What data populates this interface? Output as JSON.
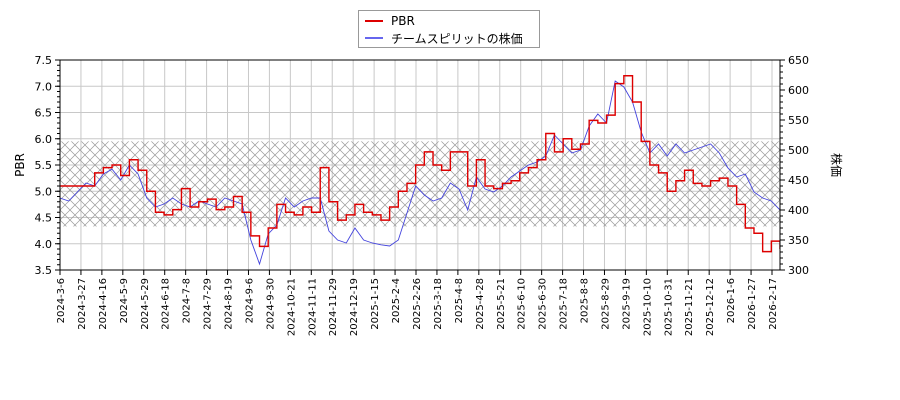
{
  "legend": {
    "items": [
      {
        "label": "PBR",
        "color": "#dd0000"
      },
      {
        "label": "チームスピリットの株価",
        "color": "#4444dd"
      }
    ]
  },
  "axes": {
    "left_title": "PBR",
    "right_title": "株価"
  },
  "chart_data": {
    "type": "line",
    "title": "",
    "xlabel": "",
    "ylabel": "PBR",
    "ylabel_right": "株価",
    "ylim": [
      3.5,
      7.5
    ],
    "ylim_right": [
      300,
      650
    ],
    "yticks": [
      "3.5",
      "4.0",
      "4.5",
      "5.0",
      "5.5",
      "6.0",
      "6.5",
      "7.0",
      "7.5"
    ],
    "yticks_right": [
      "300",
      "350",
      "400",
      "450",
      "500",
      "550",
      "600",
      "650"
    ],
    "grid": true,
    "legend_position": "top-center",
    "shaded_band": {
      "y_from": 4.33,
      "y_to": 5.95,
      "style": "cross-hatch",
      "axis": "left"
    },
    "x_tick_labels": [
      "2024-3-6",
      "2024-3-27",
      "2024-4-16",
      "2024-5-9",
      "2024-5-29",
      "2024-6-18",
      "2024-7-8",
      "2024-7-29",
      "2024-8-19",
      "2024-9-6",
      "2024-9-30",
      "2024-10-21",
      "2024-11-11",
      "2024-11-29",
      "2024-12-19",
      "2025-1-15",
      "2025-2-4",
      "2025-2-26",
      "2025-3-18",
      "2025-4-8",
      "2025-4-28",
      "2025-5-21",
      "2025-6-10",
      "2025-6-30",
      "2025-7-18",
      "2025-8-8",
      "2025-8-29",
      "2025-9-19",
      "2025-10-10",
      "2025-10-31",
      "2025-11-21",
      "2025-12-12",
      "2026-1-6",
      "2026-1-27",
      "2026-2-17"
    ],
    "series": [
      {
        "name": "PBR",
        "axis": "left",
        "color": "#dd0000",
        "step": true,
        "points": [
          [
            0,
            5.1
          ],
          [
            2,
            5.1
          ],
          [
            4,
            5.35
          ],
          [
            5,
            5.45
          ],
          [
            6,
            5.5
          ],
          [
            7,
            5.3
          ],
          [
            8,
            5.6
          ],
          [
            9,
            5.4
          ],
          [
            10,
            5.0
          ],
          [
            11,
            4.6
          ],
          [
            12,
            4.55
          ],
          [
            13,
            4.65
          ],
          [
            14,
            5.05
          ],
          [
            15,
            4.7
          ],
          [
            16,
            4.8
          ],
          [
            17,
            4.85
          ],
          [
            18,
            4.65
          ],
          [
            19,
            4.7
          ],
          [
            20,
            4.9
          ],
          [
            21,
            4.6
          ],
          [
            22,
            4.15
          ],
          [
            23,
            3.95
          ],
          [
            24,
            4.3
          ],
          [
            25,
            4.75
          ],
          [
            26,
            4.6
          ],
          [
            27,
            4.55
          ],
          [
            28,
            4.7
          ],
          [
            29,
            4.6
          ],
          [
            30,
            5.45
          ],
          [
            31,
            4.8
          ],
          [
            32,
            4.45
          ],
          [
            33,
            4.55
          ],
          [
            34,
            4.75
          ],
          [
            35,
            4.6
          ],
          [
            36,
            4.55
          ],
          [
            37,
            4.45
          ],
          [
            38,
            4.7
          ],
          [
            39,
            5.0
          ],
          [
            40,
            5.15
          ],
          [
            41,
            5.5
          ],
          [
            42,
            5.75
          ],
          [
            43,
            5.5
          ],
          [
            44,
            5.4
          ],
          [
            45,
            5.75
          ],
          [
            46,
            5.75
          ],
          [
            47,
            5.1
          ],
          [
            48,
            5.6
          ],
          [
            49,
            5.1
          ],
          [
            50,
            5.05
          ],
          [
            51,
            5.15
          ],
          [
            52,
            5.2
          ],
          [
            53,
            5.35
          ],
          [
            54,
            5.45
          ],
          [
            55,
            5.6
          ],
          [
            56,
            6.1
          ],
          [
            57,
            5.75
          ],
          [
            58,
            6.0
          ],
          [
            59,
            5.8
          ],
          [
            60,
            5.9
          ],
          [
            61,
            6.35
          ],
          [
            62,
            6.3
          ],
          [
            63,
            6.45
          ],
          [
            64,
            7.05
          ],
          [
            65,
            7.2
          ],
          [
            66,
            6.7
          ],
          [
            67,
            5.95
          ],
          [
            68,
            5.5
          ],
          [
            69,
            5.35
          ],
          [
            70,
            5.0
          ],
          [
            71,
            5.2
          ],
          [
            72,
            5.4
          ],
          [
            73,
            5.15
          ],
          [
            74,
            5.1
          ],
          [
            75,
            5.2
          ],
          [
            76,
            5.25
          ],
          [
            77,
            5.1
          ],
          [
            78,
            4.75
          ],
          [
            79,
            4.3
          ],
          [
            80,
            4.2
          ],
          [
            81,
            3.85
          ],
          [
            82,
            4.05
          ],
          [
            83,
            3.9
          ]
        ]
      },
      {
        "name": "チームスピリットの株価",
        "axis": "right",
        "color": "#4444dd",
        "step": false,
        "points": [
          [
            0,
            420
          ],
          [
            1,
            415
          ],
          [
            2,
            430
          ],
          [
            3,
            445
          ],
          [
            4,
            440
          ],
          [
            5,
            460
          ],
          [
            6,
            468
          ],
          [
            7,
            450
          ],
          [
            8,
            475
          ],
          [
            9,
            460
          ],
          [
            10,
            420
          ],
          [
            11,
            405
          ],
          [
            12,
            410
          ],
          [
            13,
            420
          ],
          [
            14,
            410
          ],
          [
            15,
            405
          ],
          [
            16,
            415
          ],
          [
            17,
            410
          ],
          [
            18,
            405
          ],
          [
            19,
            420
          ],
          [
            20,
            415
          ],
          [
            21,
            410
          ],
          [
            22,
            350
          ],
          [
            23,
            310
          ],
          [
            24,
            360
          ],
          [
            25,
            375
          ],
          [
            26,
            420
          ],
          [
            27,
            405
          ],
          [
            28,
            415
          ],
          [
            29,
            420
          ],
          [
            30,
            420
          ],
          [
            31,
            365
          ],
          [
            32,
            350
          ],
          [
            33,
            345
          ],
          [
            34,
            370
          ],
          [
            35,
            350
          ],
          [
            36,
            345
          ],
          [
            37,
            342
          ],
          [
            38,
            340
          ],
          [
            39,
            350
          ],
          [
            40,
            395
          ],
          [
            41,
            440
          ],
          [
            42,
            425
          ],
          [
            43,
            415
          ],
          [
            44,
            420
          ],
          [
            45,
            445
          ],
          [
            46,
            435
          ],
          [
            47,
            400
          ],
          [
            48,
            455
          ],
          [
            49,
            435
          ],
          [
            50,
            430
          ],
          [
            51,
            440
          ],
          [
            52,
            455
          ],
          [
            53,
            465
          ],
          [
            54,
            475
          ],
          [
            55,
            480
          ],
          [
            56,
            490
          ],
          [
            57,
            525
          ],
          [
            58,
            510
          ],
          [
            59,
            495
          ],
          [
            60,
            500
          ],
          [
            61,
            540
          ],
          [
            62,
            560
          ],
          [
            63,
            545
          ],
          [
            64,
            615
          ],
          [
            65,
            605
          ],
          [
            66,
            580
          ],
          [
            67,
            530
          ],
          [
            68,
            495
          ],
          [
            69,
            510
          ],
          [
            70,
            490
          ],
          [
            71,
            510
          ],
          [
            72,
            495
          ],
          [
            73,
            500
          ],
          [
            74,
            505
          ],
          [
            75,
            510
          ],
          [
            76,
            495
          ],
          [
            77,
            470
          ],
          [
            78,
            455
          ],
          [
            79,
            460
          ],
          [
            80,
            430
          ],
          [
            81,
            420
          ],
          [
            82,
            415
          ],
          [
            83,
            400
          ]
        ]
      }
    ]
  }
}
